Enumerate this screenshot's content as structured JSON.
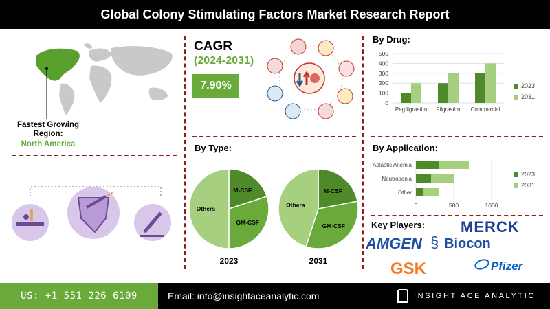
{
  "title": "Global Colony Stimulating Factors Market Research Report",
  "cagr": {
    "label": "CAGR",
    "period": "(2024-2031)",
    "value": "7.90%"
  },
  "region": {
    "label": "Fastest Growing Region:",
    "value": "North America"
  },
  "colors": {
    "green_dark": "#4f8a2a",
    "green_mid": "#6aaa3a",
    "green_light": "#a6d07f",
    "accent_red": "#8b1e1e"
  },
  "by_type": {
    "title": "By Type:"
  },
  "by_drug": {
    "title": "By Drug:"
  },
  "by_application": {
    "title": "By Application:"
  },
  "key_players": {
    "title": "Key Players:",
    "logos": [
      "MERCK",
      "AMGEN",
      "Biocon",
      "GSK",
      "Pfizer"
    ]
  },
  "footer": {
    "phone": "US: +1 551 226 6109",
    "email": "Email: info@insightaceanalytic.com",
    "brand": "INSIGHT ACE ANALYTIC"
  },
  "chart_data": [
    {
      "type": "pie",
      "title": "2023",
      "labels": [
        "M-CSF",
        "GM-CSF",
        "Others"
      ],
      "values": [
        20,
        30,
        50
      ],
      "colors": [
        "#4f8a2a",
        "#6aaa3a",
        "#a6d07f"
      ]
    },
    {
      "type": "pie",
      "title": "2031",
      "labels": [
        "M-CSF",
        "GM-CSF",
        "Others"
      ],
      "values": [
        22,
        33,
        45
      ],
      "colors": [
        "#4f8a2a",
        "#6aaa3a",
        "#a6d07f"
      ]
    },
    {
      "type": "bar",
      "title": "By Drug:",
      "categories": [
        "Pegfilgrastim",
        "Filgrastim",
        "Commercial"
      ],
      "series": [
        {
          "name": "2023",
          "values": [
            100,
            200,
            300
          ],
          "color": "#4f8a2a"
        },
        {
          "name": "2031",
          "values": [
            200,
            300,
            400
          ],
          "color": "#a6d07f"
        }
      ],
      "ylim": [
        0,
        500
      ],
      "yticks": [
        0,
        100,
        200,
        300,
        400,
        500
      ],
      "grid": true,
      "legend": "right"
    },
    {
      "type": "bar",
      "orientation": "horizontal",
      "stacked": true,
      "title": "By Application:",
      "categories": [
        "Aplastic Anemia",
        "Neutropenia",
        "Other"
      ],
      "series": [
        {
          "name": "2023",
          "values": [
            300,
            200,
            100
          ],
          "color": "#4f8a2a"
        },
        {
          "name": "2031",
          "values": [
            400,
            300,
            200
          ],
          "color": "#a6d07f"
        }
      ],
      "xlim": [
        0,
        1000
      ],
      "xticks": [
        0,
        500,
        1000
      ],
      "grid": true,
      "legend": "right"
    }
  ]
}
